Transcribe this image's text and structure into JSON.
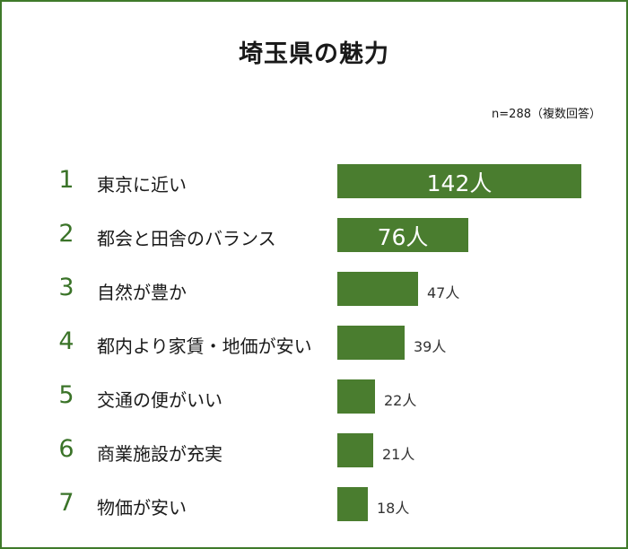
{
  "chart_data": {
    "type": "bar",
    "orientation": "horizontal",
    "title": "埼玉県の魅力",
    "note": "n=288（複数回答）",
    "unit": "人",
    "ranks": [
      "1",
      "2",
      "3",
      "4",
      "5",
      "6",
      "7"
    ],
    "categories": [
      "東京に近い",
      "都会と田舎のバランス",
      "自然が豊か",
      "都内より家賃・地価が安い",
      "交通の便がいい",
      "商業施設が充実",
      "物価が安い"
    ],
    "values": [
      142,
      76,
      47,
      39,
      22,
      21,
      18
    ],
    "value_labels": [
      "142人",
      "76人",
      "47人",
      "39人",
      "22人",
      "21人",
      "18人"
    ],
    "xlim": [
      0,
      142
    ],
    "grid": false,
    "bar_color": "#4a7d2f",
    "rank_color": "#3a7328"
  }
}
